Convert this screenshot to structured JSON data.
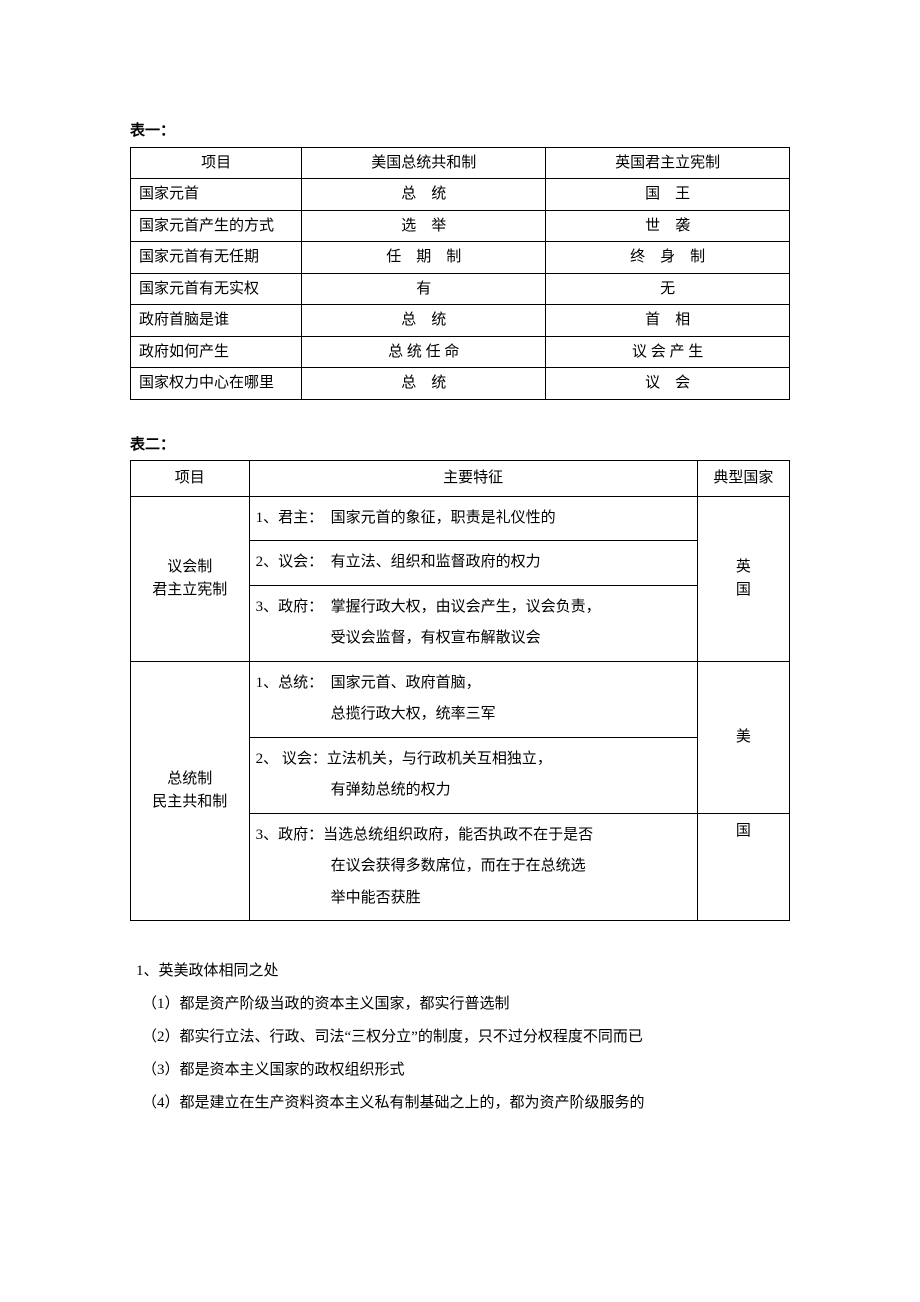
{
  "labels": {
    "table1": "表一：",
    "table2": "表二："
  },
  "table1": {
    "header": {
      "c1": "项目",
      "c2": "美国总统共和制",
      "c3": "英国君主立宪制"
    },
    "rows": [
      {
        "c1": "国家元首",
        "c2": "总　统",
        "c3": "国　王"
      },
      {
        "c1": "国家元首产生的方式",
        "c2": "选　举",
        "c3": "世　袭"
      },
      {
        "c1": "国家元首有无任期",
        "c2": "任　期　制",
        "c3": "终　身　制"
      },
      {
        "c1": "国家元首有无实权",
        "c2": "有",
        "c3": "无"
      },
      {
        "c1": "政府首脑是谁",
        "c2": "总　统",
        "c3": "首　相"
      },
      {
        "c1": "政府如何产生",
        "c2": "总 统 任 命",
        "c3": "议 会 产 生"
      },
      {
        "c1": "国家权力中心在哪里",
        "c2": "总　统",
        "c3": "议　会"
      }
    ]
  },
  "table2": {
    "header": {
      "c1": "项目",
      "c2": "主要特征",
      "c3": "典型国家"
    },
    "rows": [
      {
        "c1_l1": "议会制",
        "c1_l2": "君主立宪制",
        "feat1": "1、君主：　国家元首的象征，职责是礼仪性的",
        "feat2": "2、议会：　有立法、组织和监督政府的权力",
        "feat3_a": "3、政府：　掌握行政大权，由议会产生，议会负责，",
        "feat3_b": "受议会监督，有权宣布解散议会",
        "c3_l1": "英",
        "c3_l2": "国"
      },
      {
        "c1_l1": "总统制",
        "c1_l2": "民主共和制",
        "feat1_a": "1、总统：　国家元首、政府首脑，",
        "feat1_b": "总揽行政大权，统率三军",
        "feat2_a": "2、 议会：立法机关，与行政机关互相独立，",
        "feat2_b": "有弹劾总统的权力",
        "feat3_a": "3、政府：当选总统组织政府，能否执政不在于是否",
        "feat3_b": "在议会获得多数席位，而在于在总统选",
        "feat3_c": "举中能否获胜",
        "c3_u": "美",
        "c3_l": "国"
      }
    ]
  },
  "notes": {
    "title": "1、英美政体相同之处",
    "items": [
      "（1）都是资产阶级当政的资本主义国家，都实行普选制",
      "（2）都实行立法、行政、司法“三权分立”的制度，只不过分权程度不同而已",
      "（3）都是资本主义国家的政权组织形式",
      "（4）都是建立在生产资料资本主义私有制基础之上的，都为资产阶级服务的"
    ]
  }
}
